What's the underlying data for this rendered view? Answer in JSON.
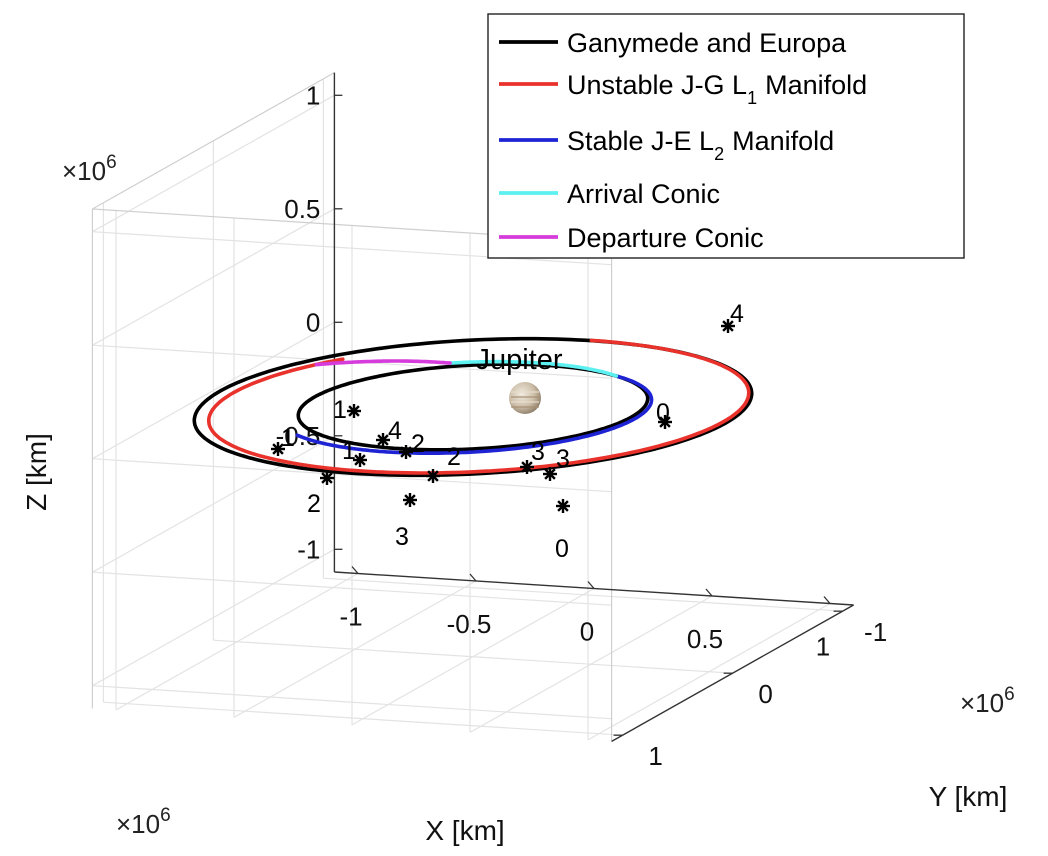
{
  "chart_data": {
    "type": "line",
    "dimensions": "3d",
    "title": "",
    "axes": {
      "x": {
        "label": "X [km]",
        "multiplier": "×10^6",
        "ticks": [
          "-1",
          "-0.5",
          "0",
          "0.5",
          "1"
        ],
        "lim": [
          -1.1,
          1.1
        ]
      },
      "y": {
        "label": "Y [km]",
        "multiplier": "×10^6",
        "ticks": [
          "-1",
          "0",
          "1"
        ],
        "lim": [
          -1.1,
          1.1
        ]
      },
      "z": {
        "label": "Z [km]",
        "multiplier": "×10^6",
        "ticks": [
          "-1",
          "-0.5",
          "0",
          "0.5",
          "1"
        ],
        "lim": [
          -1.1,
          1.1
        ]
      }
    },
    "multiplier_text": {
      "base": "×10",
      "exp": "6"
    },
    "grid": true,
    "legend_placement": "top-right",
    "central_body": {
      "name": "Jupiter",
      "position_km": [
        0,
        0,
        0
      ]
    },
    "series": [
      {
        "name": "Ganymede and Europa",
        "color": "#000000",
        "orbits": [
          {
            "body": "Ganymede",
            "radius_km": 1070400
          },
          {
            "body": "Europa",
            "radius_km": 671100
          }
        ]
      },
      {
        "name": "Unstable J-G L",
        "subscript": "1",
        "suffix": "Manifold",
        "color": "#e8322b",
        "arc_deg": [
          -90,
          215
        ],
        "radius_km": [
          1070400,
          1000000
        ]
      },
      {
        "name": "Stable J-E L",
        "subscript": "2",
        "suffix": "Manifold",
        "color": "#1e24d4",
        "arc_deg": [
          -60,
          130
        ],
        "radius_km": [
          671100,
          740000
        ]
      },
      {
        "name": "Arrival Conic",
        "color": "#5cf0f0",
        "arc_deg": [
          -60,
          -120
        ],
        "radius_km": [
          671100,
          720000
        ]
      },
      {
        "name": "Departure Conic",
        "color": "#d63cdc",
        "arc_deg": [
          -120,
          -155
        ],
        "radius_km": [
          720000,
          1000000
        ]
      }
    ],
    "markers": {
      "symbol": "asterisk",
      "labels": [
        "0",
        "1",
        "2",
        "3",
        "4",
        "0",
        "1",
        "2",
        "3",
        "4",
        "1",
        "2",
        "3",
        "0",
        "1",
        "2",
        "3"
      ]
    }
  }
}
